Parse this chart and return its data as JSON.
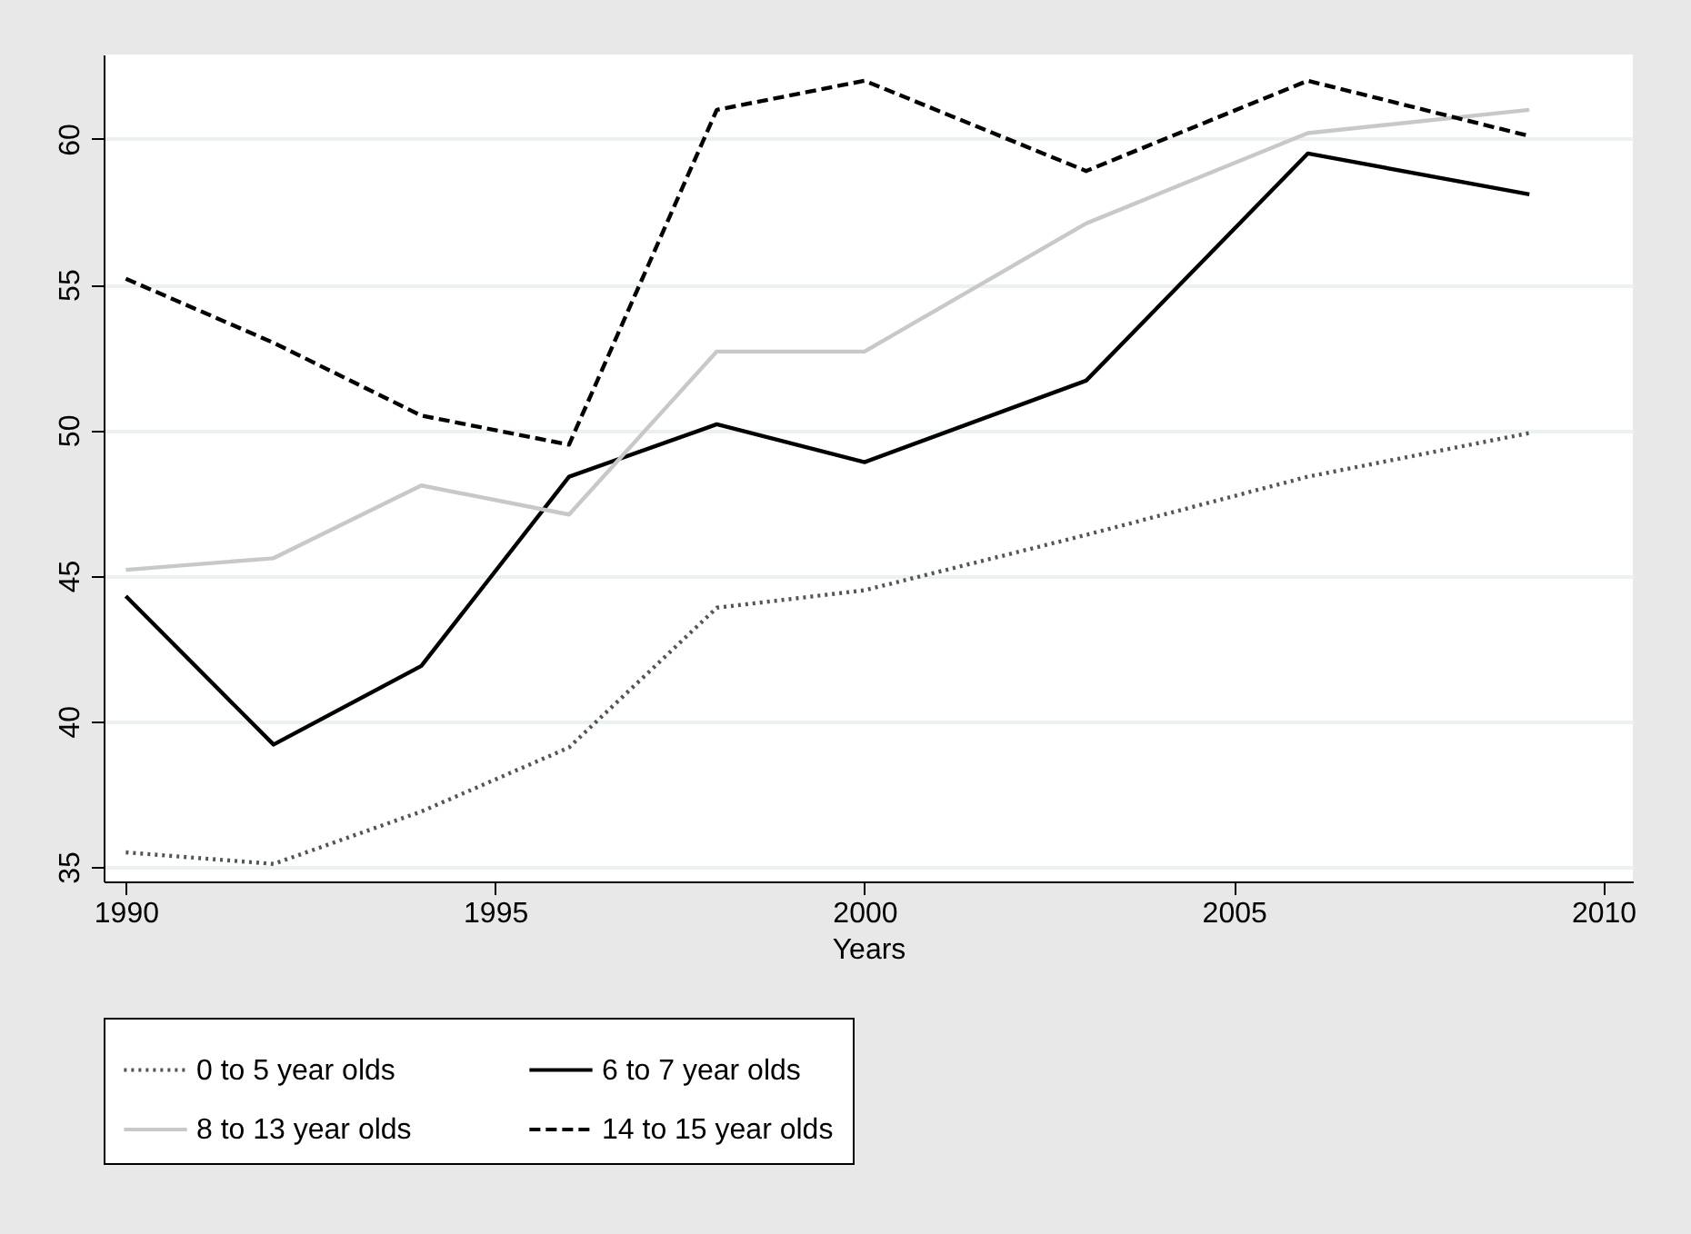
{
  "chart_data": {
    "type": "line",
    "xlabel": "Years",
    "x": [
      1990,
      1992,
      1994,
      1996,
      1998,
      2000,
      2003,
      2006,
      2009
    ],
    "series": [
      {
        "name": "0 to 5 year olds",
        "color": "#555555",
        "line_style": "dotted",
        "values": [
          35.5,
          35.1,
          36.9,
          39.1,
          43.9,
          44.5,
          46.4,
          48.4,
          49.9
        ]
      },
      {
        "name": "6 to 7 year olds",
        "color": "#000000",
        "line_style": "solid",
        "values": [
          44.3,
          39.2,
          41.9,
          48.4,
          50.2,
          48.9,
          51.7,
          59.5,
          58.1
        ]
      },
      {
        "name": "8 to 13 year olds",
        "color": "#c8c8c8",
        "line_style": "solid",
        "values": [
          45.2,
          45.6,
          48.1,
          47.1,
          52.7,
          52.7,
          57.1,
          60.2,
          61.0
        ]
      },
      {
        "name": "14 to 15 year olds",
        "color": "#000000",
        "line_style": "dashed",
        "values": [
          55.2,
          53.0,
          50.5,
          49.5,
          61.0,
          62.0,
          58.9,
          62.0,
          60.1
        ]
      }
    ],
    "xlim": [
      1989.7,
      2010.4
    ],
    "xticks": [
      1990,
      1995,
      2000,
      2005,
      2010
    ],
    "ylim": [
      34.5,
      62.9
    ],
    "yticks": [
      35,
      40,
      45,
      50,
      55,
      60
    ],
    "grid": "y",
    "legend": "bottom"
  }
}
